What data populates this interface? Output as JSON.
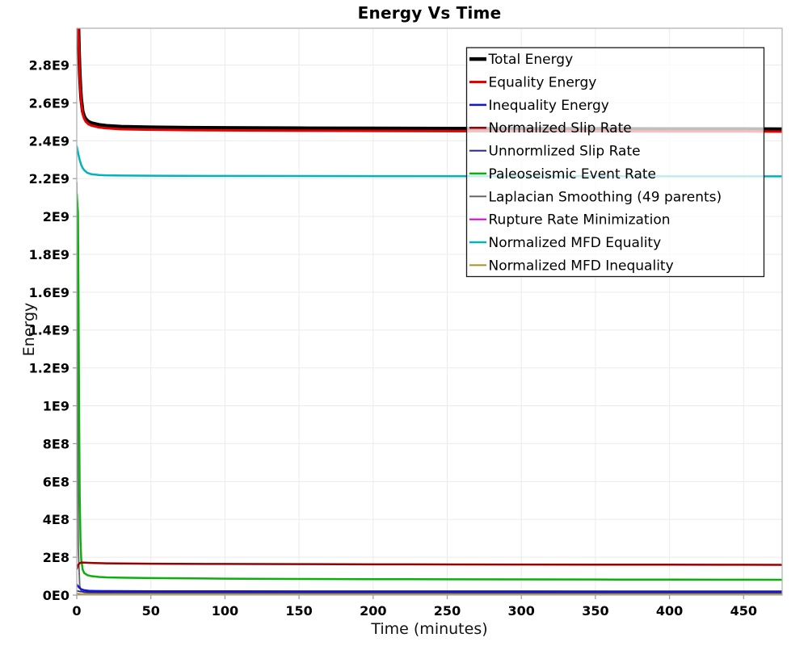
{
  "title": "Energy Vs Time",
  "chart_data": {
    "type": "line",
    "title": "Energy Vs Time",
    "xlabel": "Time (minutes)",
    "ylabel": "Energy",
    "xlim": [
      0,
      476
    ],
    "ylim": [
      0,
      2994000000.0
    ],
    "grid": true,
    "legend_position": "top-right",
    "x_ticks": [
      {
        "value": 0,
        "label": "0"
      },
      {
        "value": 50,
        "label": "50"
      },
      {
        "value": 100,
        "label": "100"
      },
      {
        "value": 150,
        "label": "150"
      },
      {
        "value": 200,
        "label": "200"
      },
      {
        "value": 250,
        "label": "250"
      },
      {
        "value": 300,
        "label": "300"
      },
      {
        "value": 350,
        "label": "350"
      },
      {
        "value": 400,
        "label": "400"
      },
      {
        "value": 450,
        "label": "450"
      }
    ],
    "y_ticks": [
      {
        "value": 0,
        "label": "0E0"
      },
      {
        "value": 200000000.0,
        "label": "2E8"
      },
      {
        "value": 400000000.0,
        "label": "4E8"
      },
      {
        "value": 600000000.0,
        "label": "6E8"
      },
      {
        "value": 800000000.0,
        "label": "8E8"
      },
      {
        "value": 1000000000.0,
        "label": "1E9"
      },
      {
        "value": 1200000000.0,
        "label": "1.2E9"
      },
      {
        "value": 1400000000.0,
        "label": "1.4E9"
      },
      {
        "value": 1600000000.0,
        "label": "1.6E9"
      },
      {
        "value": 1800000000.0,
        "label": "1.8E9"
      },
      {
        "value": 2000000000.0,
        "label": "2E9"
      },
      {
        "value": 2200000000.0,
        "label": "2.2E9"
      },
      {
        "value": 2400000000.0,
        "label": "2.4E9"
      },
      {
        "value": 2600000000.0,
        "label": "2.6E9"
      },
      {
        "value": 2800000000.0,
        "label": "2.8E9"
      }
    ],
    "series": [
      {
        "id": "total-energy",
        "name": "Total Energy",
        "color": "#000000",
        "width": 4.5,
        "zorder": 8,
        "points": [
          [
            0,
            3600000000.0
          ],
          [
            0.5,
            3300000000.0
          ],
          [
            1,
            3050000000.0
          ],
          [
            1.5,
            2880000000.0
          ],
          [
            2,
            2760000000.0
          ],
          [
            2.5,
            2680000000.0
          ],
          [
            3,
            2620000000.0
          ],
          [
            4,
            2555000000.0
          ],
          [
            5,
            2530000000.0
          ],
          [
            6,
            2515000000.0
          ],
          [
            8,
            2500000000.0
          ],
          [
            10,
            2493000000.0
          ],
          [
            15,
            2484000000.0
          ],
          [
            20,
            2479000000.0
          ],
          [
            30,
            2474000000.0
          ],
          [
            50,
            2471000000.0
          ],
          [
            75,
            2469000000.0
          ],
          [
            100,
            2468000000.0
          ],
          [
            150,
            2466000000.0
          ],
          [
            200,
            2465000000.0
          ],
          [
            250,
            2464000000.0
          ],
          [
            300,
            2463000000.0
          ],
          [
            350,
            2463000000.0
          ],
          [
            400,
            2462000000.0
          ],
          [
            450,
            2462000000.0
          ],
          [
            476,
            2461000000.0
          ]
        ]
      },
      {
        "id": "equality-energy",
        "name": "Equality Energy",
        "color": "#e60000",
        "width": 3,
        "zorder": 9,
        "points": [
          [
            0,
            3580000000.0
          ],
          [
            0.5,
            3280000000.0
          ],
          [
            1,
            3030000000.0
          ],
          [
            1.5,
            2860000000.0
          ],
          [
            2,
            2745000000.0
          ],
          [
            2.5,
            2665000000.0
          ],
          [
            3,
            2606000000.0
          ],
          [
            4,
            2542000000.0
          ],
          [
            5,
            2517000000.0
          ],
          [
            6,
            2502000000.0
          ],
          [
            8,
            2487000000.0
          ],
          [
            10,
            2480000000.0
          ],
          [
            15,
            2471000000.0
          ],
          [
            20,
            2466000000.0
          ],
          [
            30,
            2461000000.0
          ],
          [
            50,
            2458000000.0
          ],
          [
            75,
            2456000000.0
          ],
          [
            100,
            2455000000.0
          ],
          [
            150,
            2453000000.0
          ],
          [
            200,
            2452000000.0
          ],
          [
            250,
            2451000000.0
          ],
          [
            300,
            2450000000.0
          ],
          [
            350,
            2450000000.0
          ],
          [
            400,
            2449000000.0
          ],
          [
            450,
            2449000000.0
          ],
          [
            476,
            2448000000.0
          ]
        ]
      },
      {
        "id": "inequality-energy",
        "name": "Inequality Energy",
        "color": "#1414dd",
        "width": 2.5,
        "zorder": 4,
        "points": [
          [
            0,
            55000000.0
          ],
          [
            1,
            46000000.0
          ],
          [
            2,
            37000000.0
          ],
          [
            3,
            31000000.0
          ],
          [
            5,
            26000000.0
          ],
          [
            8,
            23000000.0
          ],
          [
            12,
            22000000.0
          ],
          [
            20,
            21200000.0
          ],
          [
            50,
            20500000.0
          ],
          [
            100,
            20000000.0
          ],
          [
            200,
            19700000.0
          ],
          [
            300,
            19500000.0
          ],
          [
            400,
            19300000.0
          ],
          [
            476,
            19200000.0
          ]
        ]
      },
      {
        "id": "normalized-slip-rate",
        "name": "Normalized Slip Rate",
        "color": "#990000",
        "width": 2.5,
        "zorder": 6,
        "points": [
          [
            0,
            138000000.0
          ],
          [
            1,
            160000000.0
          ],
          [
            2,
            169000000.0
          ],
          [
            3,
            172000000.0
          ],
          [
            5,
            171500000.0
          ],
          [
            8,
            170500000.0
          ],
          [
            12,
            169500000.0
          ],
          [
            20,
            168000000.0
          ],
          [
            50,
            166000000.0
          ],
          [
            100,
            164500000.0
          ],
          [
            150,
            163500000.0
          ],
          [
            200,
            162800000.0
          ],
          [
            250,
            162200000.0
          ],
          [
            300,
            161700000.0
          ],
          [
            350,
            161200000.0
          ],
          [
            400,
            160800000.0
          ],
          [
            450,
            160400000.0
          ],
          [
            476,
            160200000.0
          ]
        ]
      },
      {
        "id": "unnormlized-slip-rate",
        "name": "Unnormlized Slip Rate",
        "color": "#24248f",
        "width": 1.8,
        "zorder": 3,
        "points": [
          [
            0,
            23000000.0
          ],
          [
            2,
            19000000.0
          ],
          [
            5,
            17000000.0
          ],
          [
            10,
            16000000.0
          ],
          [
            30,
            15500000.0
          ],
          [
            100,
            15000000.0
          ],
          [
            300,
            14700000.0
          ],
          [
            476,
            14500000.0
          ]
        ]
      },
      {
        "id": "paleoseismic-event-rate",
        "name": "Paleoseismic Event Rate",
        "color": "#0cb00c",
        "width": 2.5,
        "zorder": 5,
        "points": [
          [
            0,
            2120000000.0
          ],
          [
            0.8,
            2020000000.0
          ],
          [
            1.2,
            1550000000.0
          ],
          [
            1.6,
            950000000.0
          ],
          [
            2,
            520000000.0
          ],
          [
            2.5,
            290000000.0
          ],
          [
            3,
            190000000.0
          ],
          [
            4,
            135000000.0
          ],
          [
            5,
            117000000.0
          ],
          [
            7,
            106000000.0
          ],
          [
            10,
            100000000.0
          ],
          [
            15,
            96000000.0
          ],
          [
            20,
            94000000.0
          ],
          [
            30,
            92000000.0
          ],
          [
            50,
            90000000.0
          ],
          [
            100,
            87000000.0
          ],
          [
            150,
            85500000.0
          ],
          [
            200,
            84500000.0
          ],
          [
            250,
            83500000.0
          ],
          [
            300,
            83000000.0
          ],
          [
            350,
            82500000.0
          ],
          [
            400,
            82000000.0
          ],
          [
            450,
            81500000.0
          ],
          [
            476,
            81000000.0
          ]
        ]
      },
      {
        "id": "laplacian-smoothing",
        "name": "Laplacian Smoothing (49 parents)",
        "color": "#666666",
        "width": 1.8,
        "zorder": 0,
        "points": [
          [
            0,
            2180000000.0
          ],
          [
            0.5,
            1100000000.0
          ],
          [
            1,
            250000000.0
          ],
          [
            2,
            50000000.0
          ],
          [
            3,
            22000000.0
          ],
          [
            5,
            14000000.0
          ],
          [
            10,
            11000000.0
          ],
          [
            50,
            10000000.0
          ],
          [
            200,
            9500000.0
          ],
          [
            476,
            9000000.0
          ]
        ]
      },
      {
        "id": "rupture-rate-minimization",
        "name": "Rupture Rate Minimization",
        "color": "#cc00cc",
        "width": 1.8,
        "zorder": 1,
        "points": [
          [
            0,
            7000000.0
          ],
          [
            3,
            4000000.0
          ],
          [
            10,
            3000000.0
          ],
          [
            50,
            2600000.0
          ],
          [
            476,
            2200000.0
          ]
        ]
      },
      {
        "id": "normalized-mfd-equality",
        "name": "Normalized MFD Equality",
        "color": "#00b3bd",
        "width": 2.5,
        "zorder": 7,
        "points": [
          [
            0,
            2370000000.0
          ],
          [
            1,
            2332000000.0
          ],
          [
            2,
            2298000000.0
          ],
          [
            3,
            2272000000.0
          ],
          [
            4,
            2256000000.0
          ],
          [
            5,
            2245000000.0
          ],
          [
            7,
            2231000000.0
          ],
          [
            10,
            2223000000.0
          ],
          [
            15,
            2219000000.0
          ],
          [
            20,
            2217000000.0
          ],
          [
            30,
            2216000000.0
          ],
          [
            50,
            2215000000.0
          ],
          [
            100,
            2214000000.0
          ],
          [
            200,
            2213000000.0
          ],
          [
            300,
            2212500000.0
          ],
          [
            400,
            2212000000.0
          ],
          [
            476,
            2212000000.0
          ]
        ]
      },
      {
        "id": "normalized-mfd-inequality",
        "name": "Normalized MFD Inequality",
        "color": "#b08e1f",
        "width": 1.8,
        "zorder": 2,
        "points": [
          [
            0,
            9000000.0
          ],
          [
            2,
            6500000.0
          ],
          [
            5,
            5500000.0
          ],
          [
            10,
            5000000.0
          ],
          [
            50,
            4500000.0
          ],
          [
            200,
            4200000.0
          ],
          [
            476,
            4000000.0
          ]
        ]
      }
    ],
    "style": {
      "grid_color": "#ebebeb",
      "frame_color": "#b3b3b3",
      "tick_color": "#999999",
      "legend_border_color": "#1a1a1a",
      "legend_bg_opacity": 0.75,
      "background": "#ffffff"
    }
  }
}
